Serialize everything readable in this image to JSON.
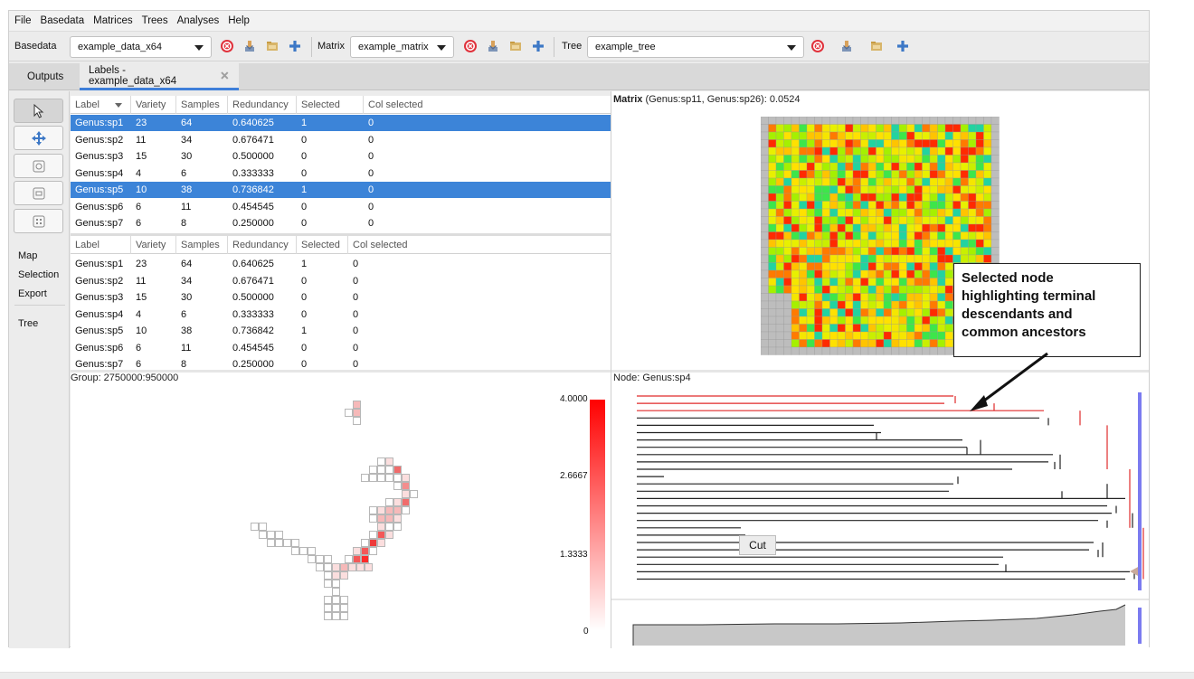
{
  "menu": [
    "File",
    "Basedata",
    "Matrices",
    "Trees",
    "Analyses",
    "Help"
  ],
  "toolbar": {
    "basedata_label": "Basedata",
    "basedata_value": "example_data_x64",
    "matrix_label": "Matrix",
    "matrix_value": "example_matrix",
    "tree_label": "Tree",
    "tree_value": "example_tree"
  },
  "tabs": [
    {
      "label": "Outputs"
    },
    {
      "label": "Labels - example_data_x64"
    }
  ],
  "sidebar": {
    "links": [
      "Map",
      "Selection",
      "Export",
      "Tree"
    ]
  },
  "labels_table": {
    "columns": [
      "Label",
      "Variety",
      "Samples",
      "Redundancy",
      "Selected",
      "Col selected"
    ],
    "rows": [
      [
        "Genus:sp1",
        "23",
        "64",
        "0.640625",
        "1",
        "0"
      ],
      [
        "Genus:sp2",
        "11",
        "34",
        "0.676471",
        "0",
        "0"
      ],
      [
        "Genus:sp3",
        "15",
        "30",
        "0.500000",
        "0",
        "0"
      ],
      [
        "Genus:sp4",
        "4",
        "6",
        "0.333333",
        "0",
        "0"
      ],
      [
        "Genus:sp5",
        "10",
        "38",
        "0.736842",
        "1",
        "0"
      ],
      [
        "Genus:sp6",
        "6",
        "11",
        "0.454545",
        "0",
        "0"
      ],
      [
        "Genus:sp7",
        "6",
        "8",
        "0.250000",
        "0",
        "0"
      ]
    ],
    "selected_rows": [
      0,
      4
    ]
  },
  "labels_table_2": {
    "columns": [
      "Label",
      "Variety",
      "Samples",
      "Redundancy",
      "Selected",
      "Col selected"
    ],
    "rows": [
      [
        "Genus:sp1",
        "23",
        "64",
        "0.640625",
        "1",
        "0"
      ],
      [
        "Genus:sp2",
        "11",
        "34",
        "0.676471",
        "0",
        "0"
      ],
      [
        "Genus:sp3",
        "15",
        "30",
        "0.500000",
        "0",
        "0"
      ],
      [
        "Genus:sp4",
        "4",
        "6",
        "0.333333",
        "0",
        "0"
      ],
      [
        "Genus:sp5",
        "10",
        "38",
        "0.736842",
        "1",
        "0"
      ],
      [
        "Genus:sp6",
        "6",
        "11",
        "0.454545",
        "0",
        "0"
      ],
      [
        "Genus:sp7",
        "6",
        "8",
        "0.250000",
        "0",
        "0"
      ]
    ]
  },
  "matrix_panel": {
    "title_bold": "Matrix",
    "title_rest": " (Genus:sp11, Genus:sp26): 0.0524"
  },
  "map_panel": {
    "title": "Group: 2750000:950000",
    "legend_ticks": [
      "4.0000",
      "2.6667",
      "1.3333",
      "0"
    ]
  },
  "tree_panel": {
    "title": "Node: Genus:sp4",
    "tooltip": "Cut"
  },
  "callout": "Selected node highlighting terminal descendants and common ancestors",
  "colors": {
    "selection": "#3c84d8",
    "highlight_branch": "#e02a2a",
    "tab_accent": "#3f7fd9",
    "slider_bar": "#7b7bf0"
  }
}
